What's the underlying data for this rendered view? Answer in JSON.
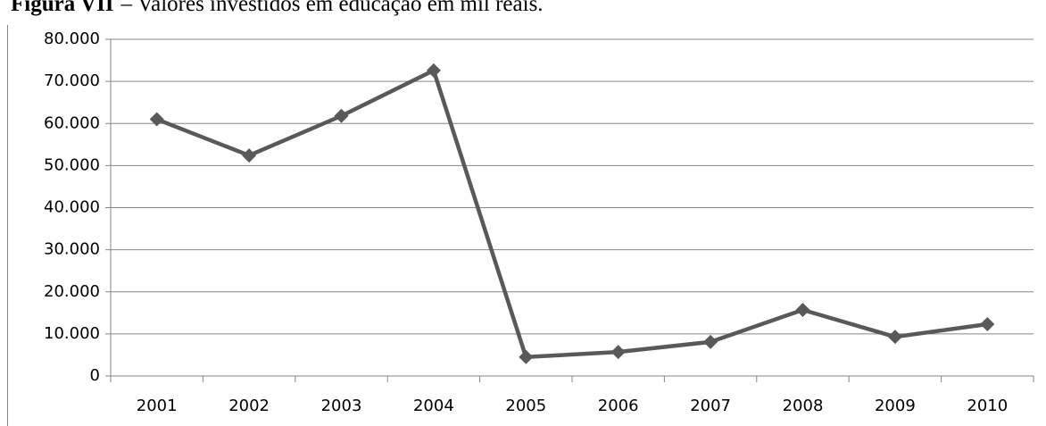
{
  "chart_data": {
    "type": "line",
    "title_label": "Figura VII",
    "title": "– Valores investidos em educação em mil reais.",
    "categories": [
      "2001",
      "2002",
      "2003",
      "2004",
      "2005",
      "2006",
      "2007",
      "2008",
      "2009",
      "2010"
    ],
    "series": [
      {
        "name": "Valores",
        "color": "#595959",
        "values": [
          61000,
          52400,
          61800,
          72600,
          4500,
          5700,
          8100,
          15700,
          9300,
          12300
        ]
      }
    ],
    "ylim": [
      0,
      80000
    ],
    "yticks": [
      0,
      {
        "value": 10000,
        "label": "10.000"
      },
      {
        "value": 20000,
        "label": "20.000"
      },
      {
        "value": 30000,
        "label": "30.000"
      },
      {
        "value": 40000,
        "label": "40.000"
      },
      {
        "value": 50000,
        "label": "50.000"
      },
      {
        "value": 60000,
        "label": "60.000"
      },
      {
        "value": 70000,
        "label": "70.000"
      },
      {
        "value": 80000,
        "label": "80.000"
      }
    ],
    "grid": true
  }
}
